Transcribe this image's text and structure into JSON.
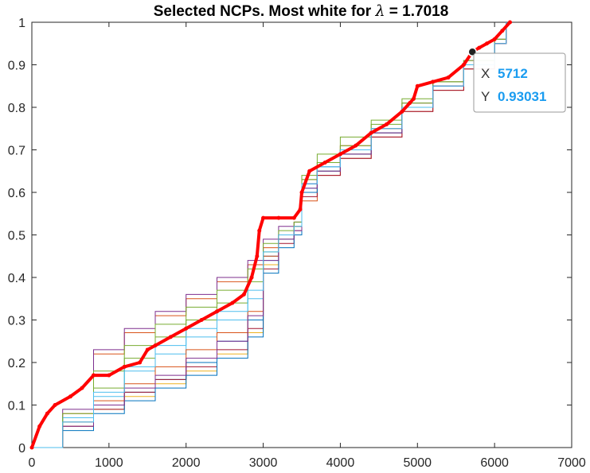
{
  "chart_data": {
    "type": "line",
    "title_prefix": "Selected NCPs.  Most white for ",
    "title_symbol": "λ",
    "title_suffix": " = 1.7018",
    "xlim": [
      0,
      7000
    ],
    "ylim": [
      0,
      1
    ],
    "xticks": [
      0,
      1000,
      2000,
      3000,
      4000,
      5000,
      6000,
      7000
    ],
    "yticks": [
      0,
      0.1,
      0.2,
      0.3,
      0.4,
      0.5,
      0.6,
      0.7,
      0.8,
      0.9,
      1
    ],
    "xtick_labels": [
      "0",
      "1000",
      "2000",
      "3000",
      "4000",
      "5000",
      "6000",
      "7000"
    ],
    "ytick_labels": [
      "0",
      "0.1",
      "0.2",
      "0.3",
      "0.4",
      "0.5",
      "0.6",
      "0.7",
      "0.8",
      "0.9",
      "1"
    ],
    "grid": false,
    "highlight_series": {
      "color": "#ff0000",
      "x": [
        0,
        100,
        200,
        300,
        500,
        650,
        800,
        1000,
        1200,
        1400,
        1500,
        1600,
        1800,
        2000,
        2200,
        2400,
        2600,
        2750,
        2850,
        2920,
        2950,
        3000,
        3200,
        3400,
        3480,
        3500,
        3600,
        3800,
        4000,
        4200,
        4400,
        4600,
        4800,
        4900,
        4950,
        5000,
        5200,
        5400,
        5600,
        5712,
        5800,
        5900,
        6000,
        6100,
        6200
      ],
      "y": [
        0,
        0.05,
        0.08,
        0.1,
        0.12,
        0.14,
        0.17,
        0.17,
        0.19,
        0.2,
        0.23,
        0.24,
        0.26,
        0.28,
        0.3,
        0.32,
        0.34,
        0.36,
        0.4,
        0.45,
        0.51,
        0.54,
        0.54,
        0.54,
        0.56,
        0.6,
        0.65,
        0.67,
        0.69,
        0.71,
        0.74,
        0.76,
        0.79,
        0.81,
        0.82,
        0.85,
        0.86,
        0.87,
        0.9,
        0.93031,
        0.94,
        0.95,
        0.96,
        0.98,
        1.0
      ]
    },
    "series": [
      {
        "color": "#0072bd",
        "x": [
          0,
          400,
          800,
          1200,
          1600,
          2000,
          2400,
          2800,
          3000,
          3200,
          3400,
          3500,
          3700,
          4000,
          4400,
          4800,
          5200,
          5600,
          6000,
          6150
        ],
        "y": [
          0,
          0.06,
          0.1,
          0.13,
          0.16,
          0.2,
          0.25,
          0.3,
          0.45,
          0.5,
          0.52,
          0.62,
          0.66,
          0.7,
          0.74,
          0.8,
          0.85,
          0.9,
          0.96,
          1.0
        ]
      },
      {
        "color": "#d95319",
        "x": [
          0,
          400,
          800,
          1200,
          1600,
          2000,
          2400,
          2800,
          3000,
          3200,
          3400,
          3500,
          3700,
          4000,
          4400,
          4800,
          5200,
          5600,
          6000,
          6150
        ],
        "y": [
          0,
          0.08,
          0.22,
          0.27,
          0.31,
          0.35,
          0.39,
          0.43,
          0.47,
          0.5,
          0.52,
          0.58,
          0.64,
          0.68,
          0.73,
          0.79,
          0.84,
          0.89,
          0.95,
          1.0
        ]
      },
      {
        "color": "#edb120",
        "x": [
          0,
          400,
          800,
          1200,
          1600,
          2000,
          2400,
          2800,
          3000,
          3200,
          3400,
          3500,
          3700,
          4000,
          4400,
          4800,
          5200,
          5600,
          6000,
          6150
        ],
        "y": [
          0,
          0.05,
          0.09,
          0.12,
          0.15,
          0.18,
          0.22,
          0.27,
          0.43,
          0.49,
          0.53,
          0.6,
          0.65,
          0.69,
          0.74,
          0.81,
          0.86,
          0.91,
          0.96,
          1.0
        ]
      },
      {
        "color": "#7e2f8e",
        "x": [
          0,
          400,
          800,
          1200,
          1600,
          2000,
          2400,
          2800,
          3000,
          3200,
          3400,
          3500,
          3700,
          4000,
          4400,
          4800,
          5200,
          5600,
          6000,
          6150
        ],
        "y": [
          0,
          0.09,
          0.23,
          0.28,
          0.32,
          0.36,
          0.4,
          0.44,
          0.49,
          0.52,
          0.53,
          0.62,
          0.66,
          0.7,
          0.75,
          0.81,
          0.86,
          0.91,
          0.96,
          1.0
        ]
      },
      {
        "color": "#77ac30",
        "x": [
          0,
          400,
          800,
          1200,
          1600,
          2000,
          2400,
          2800,
          3000,
          3200,
          3400,
          3500,
          3700,
          4000,
          4400,
          4800,
          5200,
          5600,
          6000,
          6150
        ],
        "y": [
          0,
          0.07,
          0.14,
          0.21,
          0.26,
          0.3,
          0.34,
          0.39,
          0.46,
          0.5,
          0.52,
          0.64,
          0.69,
          0.73,
          0.77,
          0.82,
          0.86,
          0.9,
          0.95,
          1.0
        ]
      },
      {
        "color": "#4dbeee",
        "x": [
          0,
          400,
          800,
          1200,
          1600,
          2000,
          2400,
          2800,
          3000,
          3200,
          3400,
          3500,
          3700,
          4000,
          4400,
          4800,
          5200,
          5600,
          6000,
          6150
        ],
        "y": [
          0,
          0.07,
          0.12,
          0.18,
          0.22,
          0.26,
          0.3,
          0.35,
          0.44,
          0.49,
          0.52,
          0.61,
          0.66,
          0.7,
          0.75,
          0.8,
          0.85,
          0.9,
          0.95,
          1.0
        ]
      },
      {
        "color": "#a2142f",
        "x": [
          0,
          400,
          800,
          1200,
          1600,
          2000,
          2400,
          2800,
          3000,
          3200,
          3400,
          3500,
          3700,
          4000,
          4400,
          4800,
          5200,
          5600,
          6000,
          6150
        ],
        "y": [
          0,
          0.05,
          0.09,
          0.13,
          0.16,
          0.19,
          0.23,
          0.28,
          0.42,
          0.48,
          0.51,
          0.59,
          0.64,
          0.68,
          0.73,
          0.79,
          0.84,
          0.89,
          0.95,
          1.0
        ]
      },
      {
        "color": "#0072bd",
        "x": [
          0,
          400,
          800,
          1200,
          1600,
          2000,
          2400,
          2800,
          3000,
          3200,
          3400,
          3500,
          3700,
          4000,
          4400,
          4800,
          5200,
          5600,
          6000,
          6150
        ],
        "y": [
          0,
          0.04,
          0.08,
          0.11,
          0.14,
          0.17,
          0.21,
          0.26,
          0.41,
          0.47,
          0.5,
          0.6,
          0.65,
          0.69,
          0.74,
          0.8,
          0.85,
          0.9,
          0.95,
          1.0
        ]
      },
      {
        "color": "#d95319",
        "x": [
          0,
          400,
          800,
          1200,
          1600,
          2000,
          2400,
          2800,
          3000,
          3200,
          3400,
          3500,
          3700,
          4000,
          4400,
          4800,
          5200,
          5600,
          6000,
          6150
        ],
        "y": [
          0,
          0.06,
          0.11,
          0.15,
          0.19,
          0.23,
          0.27,
          0.32,
          0.45,
          0.5,
          0.52,
          0.63,
          0.67,
          0.71,
          0.75,
          0.8,
          0.85,
          0.9,
          0.95,
          1.0
        ]
      },
      {
        "color": "#77ac30",
        "x": [
          0,
          400,
          800,
          1200,
          1600,
          2000,
          2400,
          2800,
          3000,
          3200,
          3400,
          3500,
          3700,
          4000,
          4400,
          4800,
          5200,
          5600,
          6000,
          6150
        ],
        "y": [
          0,
          0.08,
          0.18,
          0.24,
          0.29,
          0.33,
          0.37,
          0.42,
          0.48,
          0.51,
          0.53,
          0.63,
          0.67,
          0.71,
          0.76,
          0.81,
          0.86,
          0.91,
          0.96,
          1.0
        ]
      },
      {
        "color": "#7e2f8e",
        "x": [
          0,
          400,
          800,
          1200,
          1600,
          2000,
          2400,
          2800,
          3000,
          3200,
          3400,
          3500,
          3700,
          4000,
          4400,
          4800,
          5200,
          5600,
          6000,
          6150
        ],
        "y": [
          0,
          0.05,
          0.1,
          0.14,
          0.17,
          0.21,
          0.25,
          0.31,
          0.44,
          0.49,
          0.51,
          0.61,
          0.65,
          0.69,
          0.74,
          0.8,
          0.85,
          0.9,
          0.95,
          1.0
        ]
      },
      {
        "color": "#4dbeee",
        "x": [
          0,
          400,
          800,
          1200,
          1600,
          2000,
          2400,
          2800,
          3000,
          3200,
          3400,
          3500,
          3700,
          4000,
          4400,
          4800,
          5200,
          5600,
          6000,
          6150
        ],
        "y": [
          0,
          0.06,
          0.13,
          0.19,
          0.24,
          0.28,
          0.32,
          0.37,
          0.46,
          0.5,
          0.52,
          0.62,
          0.66,
          0.7,
          0.75,
          0.8,
          0.85,
          0.9,
          0.95,
          1.0
        ]
      }
    ]
  },
  "datatip": {
    "x_key": "X",
    "x_value": "5712",
    "y_key": "Y",
    "y_value": "0.93031",
    "x": 5712,
    "y": 0.93031
  }
}
